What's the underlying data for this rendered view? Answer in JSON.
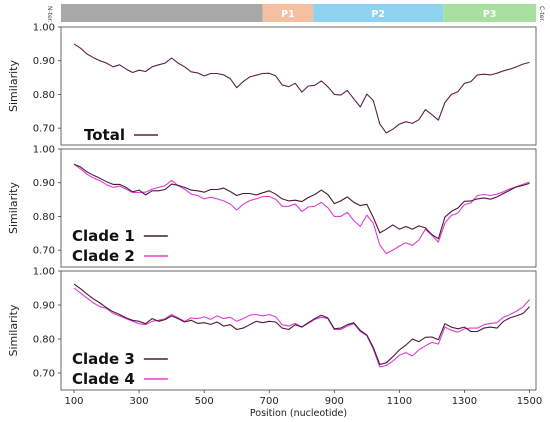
{
  "domain_bar": {
    "n_term": "N-ter.",
    "c_term": "C-ter.",
    "segments": [
      {
        "label": "",
        "start": 0,
        "end": 680,
        "color": "#a8a8a8"
      },
      {
        "label": "P1",
        "start": 680,
        "end": 835,
        "color": "#f5bfa1"
      },
      {
        "label": "P2",
        "start": 835,
        "end": 1235,
        "color": "#8fd3f0"
      },
      {
        "label": "P3",
        "start": 1235,
        "end": 1520,
        "color": "#a8e0a0"
      }
    ]
  },
  "chart_data": [
    {
      "type": "line",
      "ylabel": "Similarity",
      "ylim": [
        0.65,
        1.0
      ],
      "yticks": [
        "1.00",
        "0.90",
        "0.80",
        "0.70"
      ],
      "xlim": [
        60,
        1520
      ],
      "x": [
        100,
        120,
        140,
        160,
        180,
        200,
        220,
        240,
        260,
        280,
        300,
        320,
        340,
        360,
        380,
        400,
        420,
        440,
        460,
        480,
        500,
        520,
        540,
        560,
        580,
        600,
        620,
        640,
        660,
        680,
        700,
        720,
        740,
        760,
        780,
        800,
        820,
        840,
        860,
        880,
        900,
        920,
        940,
        960,
        980,
        1000,
        1020,
        1040,
        1060,
        1080,
        1100,
        1120,
        1140,
        1160,
        1180,
        1200,
        1220,
        1240,
        1260,
        1280,
        1300,
        1320,
        1340,
        1360,
        1380,
        1400,
        1420,
        1440,
        1460,
        1480,
        1500
      ],
      "series": [
        {
          "name": "Total",
          "color": "#5a2341",
          "values": [
            0.95,
            0.937,
            0.92,
            0.909,
            0.9,
            0.893,
            0.882,
            0.888,
            0.875,
            0.865,
            0.872,
            0.868,
            0.882,
            0.888,
            0.893,
            0.908,
            0.893,
            0.882,
            0.867,
            0.864,
            0.855,
            0.862,
            0.862,
            0.858,
            0.847,
            0.82,
            0.838,
            0.852,
            0.857,
            0.862,
            0.863,
            0.855,
            0.828,
            0.823,
            0.833,
            0.807,
            0.825,
            0.827,
            0.84,
            0.823,
            0.8,
            0.798,
            0.812,
            0.787,
            0.763,
            0.801,
            0.782,
            0.712,
            0.686,
            0.697,
            0.712,
            0.719,
            0.714,
            0.725,
            0.755,
            0.74,
            0.724,
            0.776,
            0.8,
            0.808,
            0.833,
            0.838,
            0.858,
            0.86,
            0.858,
            0.863,
            0.87,
            0.875,
            0.882,
            0.89,
            0.895
          ]
        }
      ],
      "legend": [
        {
          "label": "Total",
          "color": "#5a2341"
        }
      ]
    },
    {
      "type": "line",
      "ylabel": "Similarity",
      "ylim": [
        0.65,
        1.0
      ],
      "yticks": [
        "1.00",
        "0.90",
        "0.80",
        "0.70"
      ],
      "xlim": [
        60,
        1520
      ],
      "x": [
        100,
        120,
        140,
        160,
        180,
        200,
        220,
        240,
        260,
        280,
        300,
        320,
        340,
        360,
        380,
        400,
        420,
        440,
        460,
        480,
        500,
        520,
        540,
        560,
        580,
        600,
        620,
        640,
        660,
        680,
        700,
        720,
        740,
        760,
        780,
        800,
        820,
        840,
        860,
        880,
        900,
        920,
        940,
        960,
        980,
        1000,
        1020,
        1040,
        1060,
        1080,
        1100,
        1120,
        1140,
        1160,
        1180,
        1200,
        1220,
        1240,
        1260,
        1280,
        1300,
        1320,
        1340,
        1360,
        1380,
        1400,
        1420,
        1440,
        1460,
        1480,
        1500
      ],
      "series": [
        {
          "name": "Clade 1",
          "color": "#4a1a36",
          "values": [
            0.955,
            0.947,
            0.932,
            0.922,
            0.913,
            0.903,
            0.895,
            0.895,
            0.886,
            0.873,
            0.878,
            0.864,
            0.876,
            0.876,
            0.88,
            0.896,
            0.892,
            0.886,
            0.878,
            0.876,
            0.872,
            0.88,
            0.88,
            0.884,
            0.874,
            0.862,
            0.868,
            0.868,
            0.864,
            0.87,
            0.876,
            0.866,
            0.852,
            0.846,
            0.848,
            0.844,
            0.856,
            0.865,
            0.878,
            0.865,
            0.838,
            0.846,
            0.858,
            0.842,
            0.832,
            0.836,
            0.797,
            0.751,
            0.762,
            0.775,
            0.762,
            0.77,
            0.762,
            0.772,
            0.766,
            0.746,
            0.734,
            0.798,
            0.815,
            0.825,
            0.845,
            0.846,
            0.852,
            0.855,
            0.851,
            0.858,
            0.868,
            0.878,
            0.888,
            0.892,
            0.898
          ]
        },
        {
          "name": "Clade 2",
          "color": "#e03bd8",
          "values": [
            0.955,
            0.941,
            0.925,
            0.914,
            0.906,
            0.894,
            0.886,
            0.89,
            0.881,
            0.871,
            0.871,
            0.872,
            0.881,
            0.886,
            0.891,
            0.907,
            0.891,
            0.881,
            0.866,
            0.862,
            0.852,
            0.857,
            0.852,
            0.846,
            0.837,
            0.819,
            0.836,
            0.847,
            0.852,
            0.859,
            0.859,
            0.851,
            0.83,
            0.83,
            0.837,
            0.815,
            0.828,
            0.83,
            0.842,
            0.826,
            0.8,
            0.8,
            0.812,
            0.788,
            0.77,
            0.804,
            0.78,
            0.715,
            0.69,
            0.7,
            0.712,
            0.722,
            0.714,
            0.73,
            0.762,
            0.744,
            0.724,
            0.78,
            0.803,
            0.81,
            0.835,
            0.84,
            0.862,
            0.865,
            0.862,
            0.866,
            0.873,
            0.882,
            0.888,
            0.895,
            0.902
          ]
        }
      ],
      "legend": [
        {
          "label": "Clade 1",
          "color": "#4a1a36"
        },
        {
          "label": "Clade 2",
          "color": "#e03bd8"
        }
      ]
    },
    {
      "type": "line",
      "ylabel": "Similarity",
      "ylim": [
        0.65,
        1.0
      ],
      "yticks": [
        "1.00",
        "0.90",
        "0.80",
        "0.70"
      ],
      "xlim": [
        60,
        1520
      ],
      "xticks": [
        "100",
        "300",
        "500",
        "700",
        "900",
        "1100",
        "1300",
        "1500"
      ],
      "xlabel": "Position (nucleotide)",
      "x": [
        100,
        120,
        140,
        160,
        180,
        200,
        220,
        240,
        260,
        280,
        300,
        320,
        340,
        360,
        380,
        400,
        420,
        440,
        460,
        480,
        500,
        520,
        540,
        560,
        580,
        600,
        620,
        640,
        660,
        680,
        700,
        720,
        740,
        760,
        780,
        800,
        820,
        840,
        860,
        880,
        900,
        920,
        940,
        960,
        980,
        1000,
        1020,
        1040,
        1060,
        1080,
        1100,
        1120,
        1140,
        1160,
        1180,
        1200,
        1220,
        1240,
        1260,
        1280,
        1300,
        1320,
        1340,
        1360,
        1380,
        1400,
        1420,
        1440,
        1460,
        1480,
        1500
      ],
      "series": [
        {
          "name": "Clade 3",
          "color": "#4a1a36",
          "values": [
            0.962,
            0.948,
            0.932,
            0.918,
            0.906,
            0.892,
            0.88,
            0.872,
            0.862,
            0.855,
            0.852,
            0.845,
            0.86,
            0.852,
            0.857,
            0.868,
            0.86,
            0.85,
            0.855,
            0.846,
            0.848,
            0.843,
            0.85,
            0.838,
            0.842,
            0.828,
            0.832,
            0.842,
            0.852,
            0.848,
            0.852,
            0.85,
            0.832,
            0.828,
            0.842,
            0.835,
            0.848,
            0.86,
            0.87,
            0.862,
            0.83,
            0.832,
            0.842,
            0.848,
            0.825,
            0.812,
            0.775,
            0.725,
            0.73,
            0.748,
            0.768,
            0.782,
            0.8,
            0.792,
            0.805,
            0.806,
            0.798,
            0.845,
            0.835,
            0.83,
            0.835,
            0.822,
            0.822,
            0.832,
            0.835,
            0.832,
            0.852,
            0.862,
            0.868,
            0.875,
            0.895
          ]
        },
        {
          "name": "Clade 4",
          "color": "#e03bd8",
          "values": [
            0.95,
            0.935,
            0.92,
            0.906,
            0.895,
            0.89,
            0.875,
            0.868,
            0.86,
            0.852,
            0.845,
            0.842,
            0.852,
            0.855,
            0.86,
            0.872,
            0.862,
            0.852,
            0.862,
            0.86,
            0.865,
            0.858,
            0.868,
            0.86,
            0.864,
            0.852,
            0.86,
            0.87,
            0.872,
            0.868,
            0.872,
            0.865,
            0.842,
            0.838,
            0.846,
            0.835,
            0.846,
            0.858,
            0.864,
            0.86,
            0.828,
            0.828,
            0.838,
            0.845,
            0.822,
            0.81,
            0.77,
            0.718,
            0.722,
            0.735,
            0.752,
            0.76,
            0.75,
            0.768,
            0.78,
            0.79,
            0.785,
            0.835,
            0.826,
            0.82,
            0.83,
            0.832,
            0.832,
            0.842,
            0.846,
            0.848,
            0.864,
            0.872,
            0.882,
            0.894,
            0.916
          ]
        }
      ],
      "legend": [
        {
          "label": "Clade 3",
          "color": "#4a1a36"
        },
        {
          "label": "Clade 4",
          "color": "#e03bd8"
        }
      ]
    }
  ]
}
